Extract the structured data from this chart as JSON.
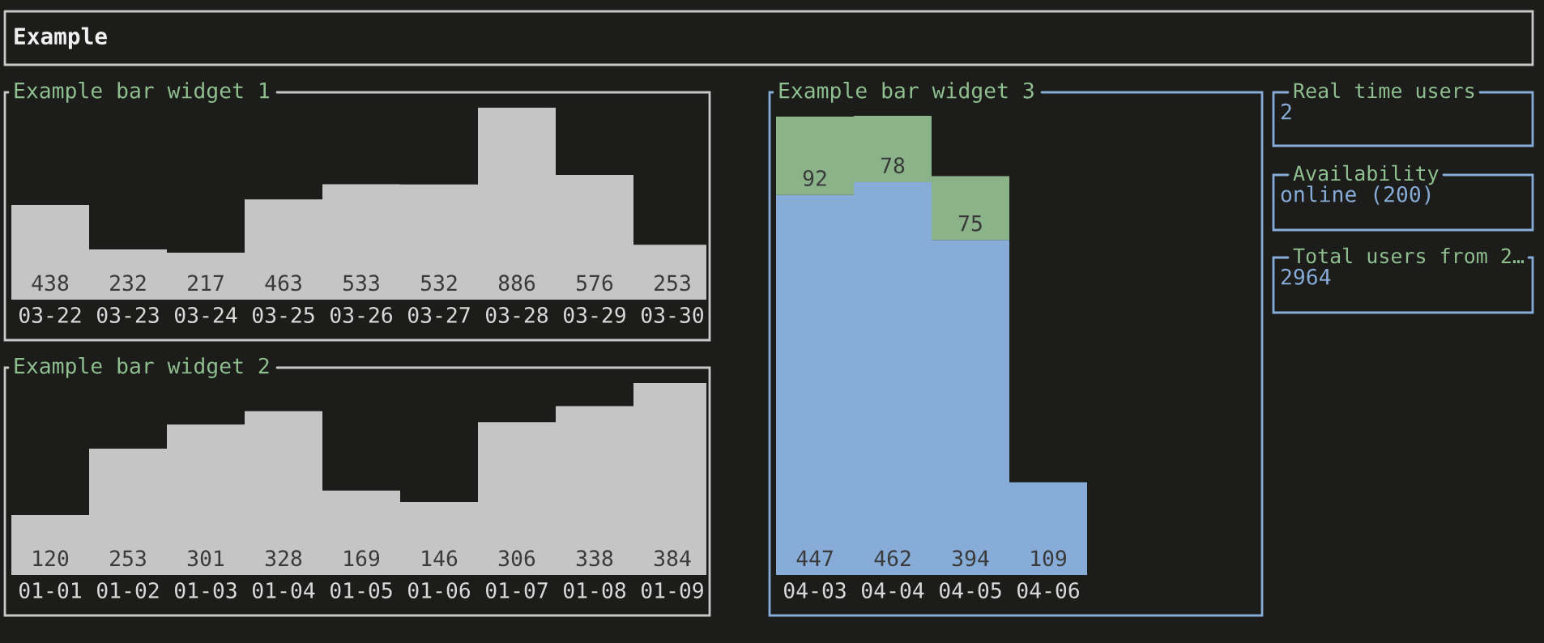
{
  "chart_data": [
    {
      "type": "other",
      "title": "Example"
    },
    {
      "type": "bar",
      "title": "Example bar widget 1",
      "categories": [
        "03-22",
        "03-23",
        "03-24",
        "03-25",
        "03-26",
        "03-27",
        "03-28",
        "03-29",
        "03-30"
      ],
      "values": [
        438,
        232,
        217,
        463,
        533,
        532,
        886,
        576,
        253
      ],
      "color": "#c5c5c5",
      "data_labels": true,
      "tick_labels": "x"
    },
    {
      "type": "bar",
      "title": "Example bar widget 2",
      "categories": [
        "01-01",
        "01-02",
        "01-03",
        "01-04",
        "01-05",
        "01-06",
        "01-07",
        "01-08",
        "01-09"
      ],
      "values": [
        120,
        253,
        301,
        328,
        169,
        146,
        306,
        338,
        384
      ],
      "color": "#c5c5c5",
      "data_labels": true,
      "tick_labels": "x"
    },
    {
      "type": "bar",
      "title": "Example bar widget 3",
      "categories": [
        "04-03",
        "04-04",
        "04-05",
        "04-06"
      ],
      "stacked": true,
      "series": [
        {
          "color": "#87acd8",
          "values": [
            447,
            462,
            394,
            109
          ]
        },
        {
          "color": "#8bb38a",
          "values": [
            92,
            78,
            75,
            null
          ]
        }
      ],
      "data_labels": true,
      "tick_labels": "x"
    },
    {
      "type": "other",
      "title": "Real time users",
      "annotations": [
        "2"
      ]
    },
    {
      "type": "other",
      "title": "Availability",
      "annotations": [
        "online (200)"
      ]
    },
    {
      "type": "other",
      "title": "Total users from 2…",
      "annotations": [
        "2964"
      ]
    }
  ]
}
